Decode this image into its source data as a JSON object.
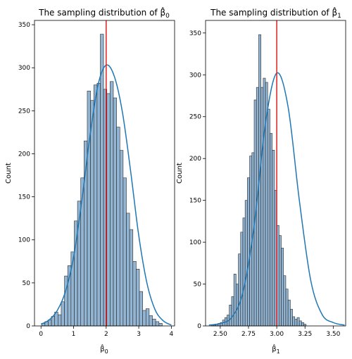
{
  "chart_data": [
    {
      "type": "bar",
      "title_prefix": "The sampling distribution of ",
      "title_symbol": "β̂",
      "title_sub": "0",
      "xlabel_symbol": "β̂",
      "xlabel_sub": "0",
      "ylabel": "Count",
      "xlim": [
        -0.2,
        4.1
      ],
      "ylim": [
        0,
        355
      ],
      "xticks": [
        0,
        1,
        2,
        3,
        4
      ],
      "xtick_labels": [
        "0",
        "1",
        "2",
        "3",
        "4"
      ],
      "yticks": [
        0,
        50,
        100,
        150,
        200,
        250,
        300,
        350
      ],
      "ytick_labels": [
        "0",
        "50",
        "100",
        "150",
        "200",
        "250",
        "300",
        "350"
      ],
      "bin_start": 0.02,
      "bin_width": 0.1,
      "bar_heights": [
        3,
        5,
        7,
        11,
        16,
        13,
        28,
        58,
        70,
        86,
        122,
        145,
        172,
        215,
        273,
        262,
        280,
        282,
        339,
        275,
        270,
        284,
        265,
        231,
        204,
        172,
        131,
        112,
        75,
        66,
        40,
        18,
        20,
        12,
        8,
        5,
        3
      ],
      "kde_x": [
        0.0,
        0.25,
        0.5,
        0.75,
        1.0,
        1.25,
        1.5,
        1.75,
        2.0,
        2.25,
        2.5,
        2.75,
        3.0,
        3.25,
        3.5,
        3.75,
        4.0
      ],
      "kde_y": [
        2,
        7,
        18,
        40,
        80,
        145,
        220,
        280,
        303,
        290,
        248,
        180,
        105,
        50,
        19,
        6,
        1
      ],
      "vline": 2.0,
      "bar_color": "#7fa8cc",
      "line_color": "#1f77b4",
      "vline_color": "#e02020"
    },
    {
      "type": "bar",
      "title_prefix": "The sampling distribution of ",
      "title_symbol": "β̂",
      "title_sub": "1",
      "xlabel_symbol": "β̂",
      "xlabel_sub": "1",
      "ylabel": "Count",
      "xlim": [
        2.37,
        3.61
      ],
      "ylim": [
        0,
        365
      ],
      "xticks": [
        2.5,
        2.75,
        3.0,
        3.25,
        3.5
      ],
      "xtick_labels": [
        "2.50",
        "2.75",
        "3.00",
        "3.25",
        "3.50"
      ],
      "yticks": [
        0,
        50,
        100,
        150,
        200,
        250,
        300,
        350
      ],
      "ytick_labels": [
        "0",
        "50",
        "100",
        "150",
        "200",
        "250",
        "300",
        "350"
      ],
      "bin_start": 2.42,
      "bin_width": 0.02,
      "bar_heights": [
        1,
        1,
        2,
        3,
        4,
        7,
        10,
        13,
        25,
        35,
        62,
        50,
        86,
        112,
        129,
        150,
        177,
        203,
        207,
        270,
        285,
        348,
        285,
        296,
        291,
        259,
        230,
        210,
        162,
        120,
        108,
        93,
        60,
        44,
        31,
        20,
        11,
        8,
        10,
        6,
        4,
        2
      ],
      "kde_x": [
        2.4,
        2.5,
        2.6,
        2.7,
        2.8,
        2.9,
        3.0,
        3.1,
        3.2,
        3.3,
        3.4,
        3.5,
        3.6
      ],
      "kde_y": [
        1,
        3,
        10,
        40,
        120,
        242,
        302,
        262,
        150,
        55,
        14,
        4,
        1
      ],
      "vline": 3.0,
      "bar_color": "#7fa8cc",
      "line_color": "#1f77b4",
      "vline_color": "#e02020"
    }
  ]
}
